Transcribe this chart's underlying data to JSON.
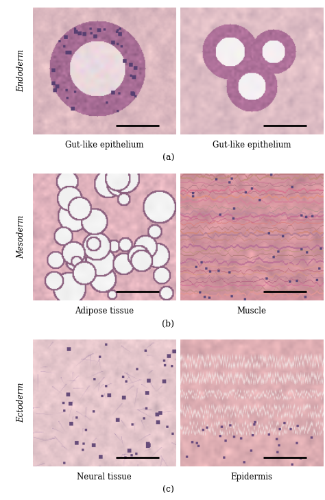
{
  "row_labels": [
    "Endoderm",
    "Mesoderm",
    "Ectoderm"
  ],
  "panel_labels": [
    "(a)",
    "(b)",
    "(c)"
  ],
  "image_captions": [
    [
      "Gut-like epithelium",
      "Gut-like epithelium"
    ],
    [
      "Adipose tissue",
      "Muscle"
    ],
    [
      "Neural tissue",
      "Epidermis"
    ]
  ],
  "bg_color": "#ffffff",
  "row_label_fontsize": 8.5,
  "caption_fontsize": 8.5,
  "panel_label_fontsize": 9,
  "scalebar_color": "#000000",
  "figure_width": 4.74,
  "figure_height": 7.29,
  "dpi": 100
}
